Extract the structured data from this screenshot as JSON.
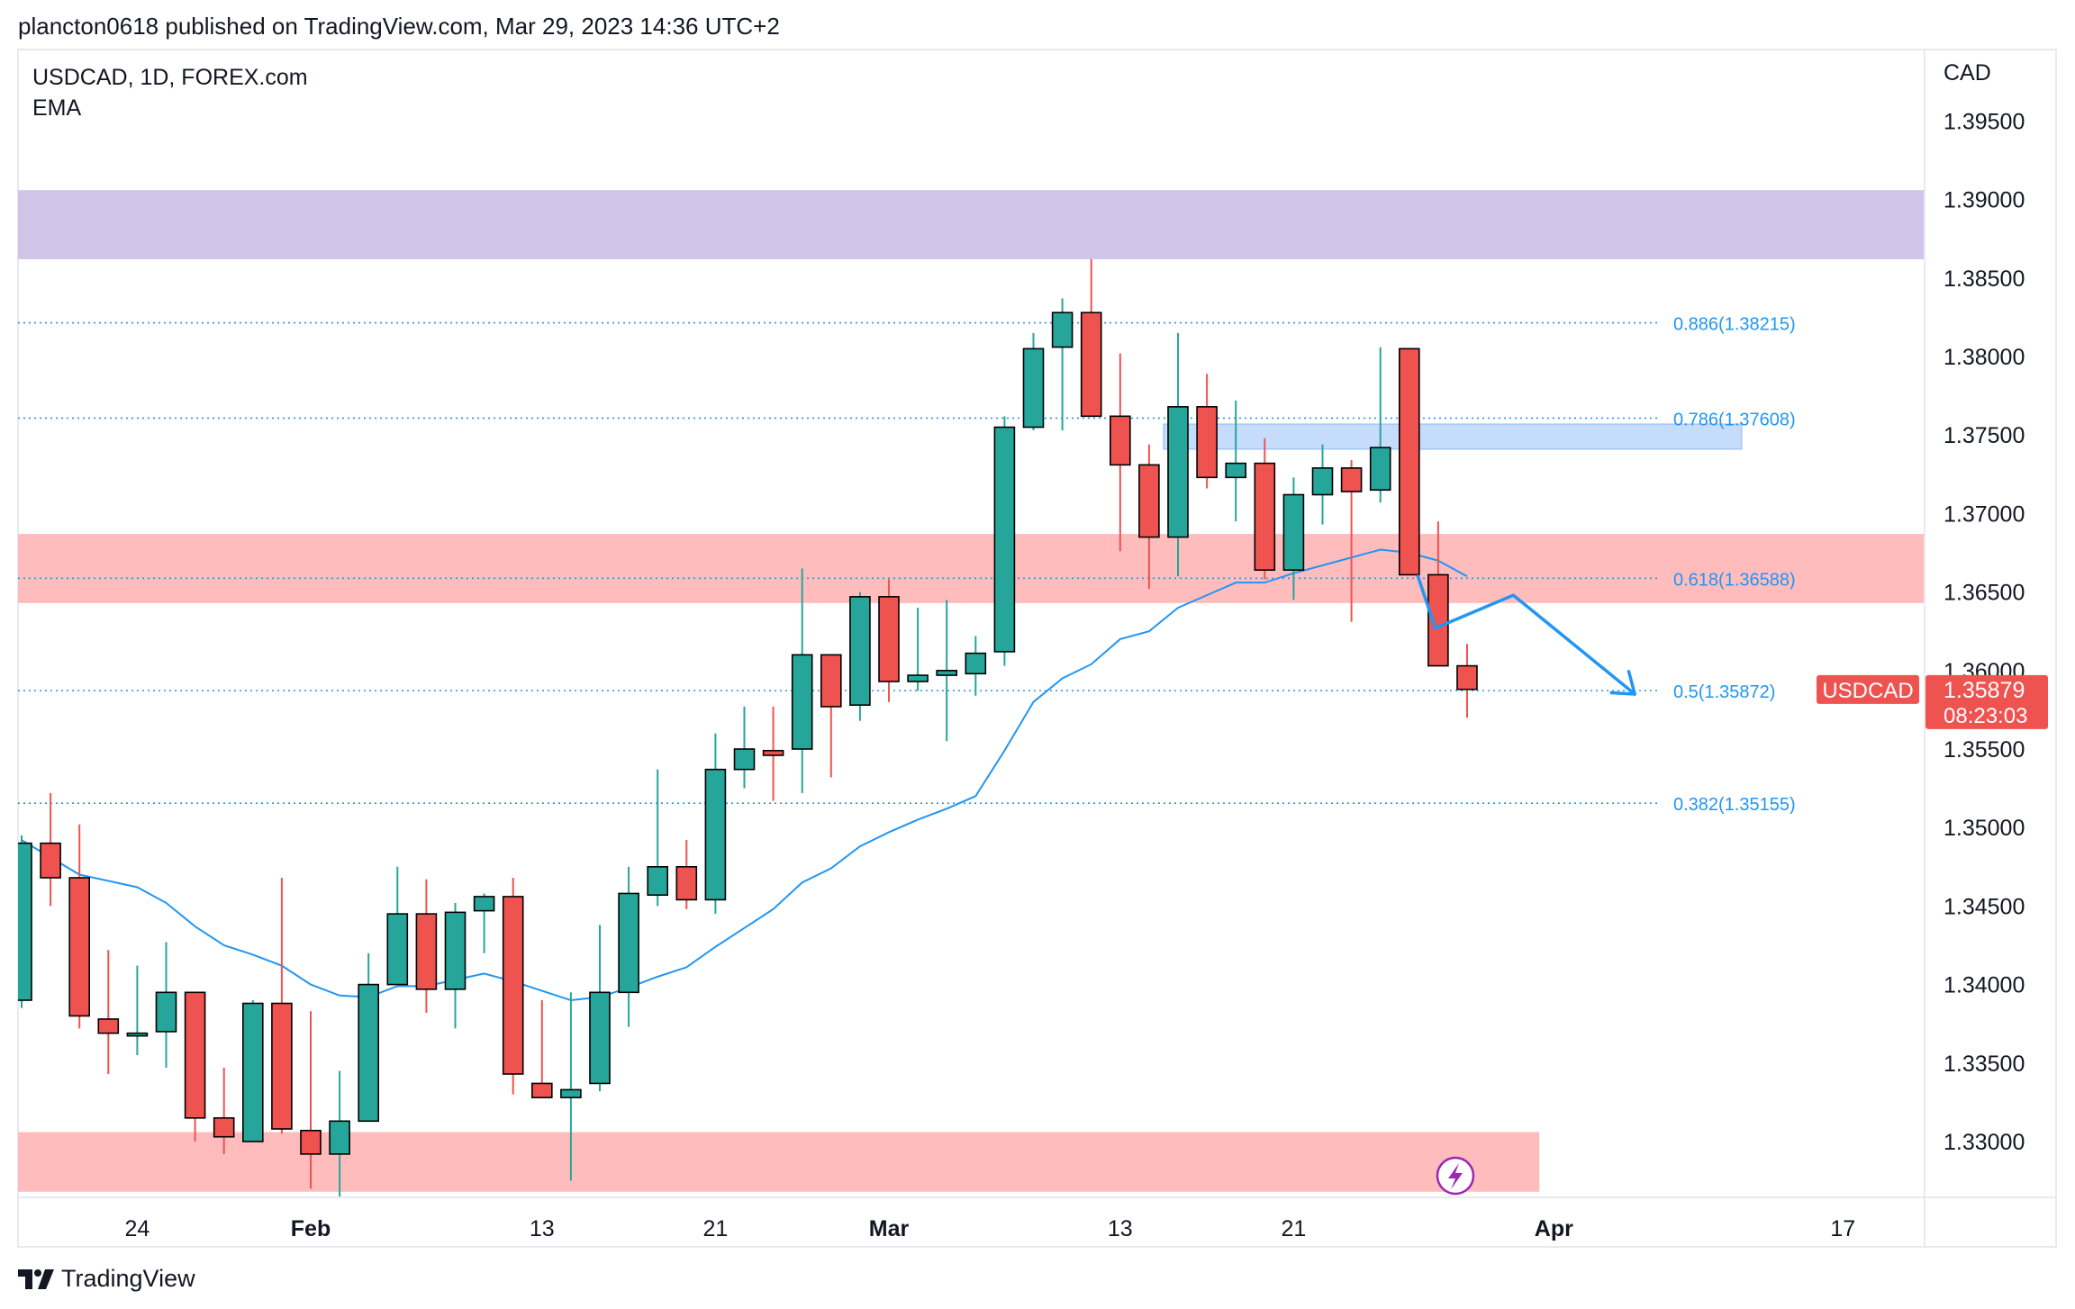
{
  "header": {
    "published_line": "plancton0618 published on TradingView.com, Mar 29, 2023 14:36 UTC+2"
  },
  "legend": {
    "symbol_line": "USDCAD, 1D, FOREX.com",
    "indicator": "EMA"
  },
  "footer": {
    "brand": "TradingView"
  },
  "colors": {
    "up": "#26a69a",
    "down": "#ef5350",
    "ema": "#2196f3",
    "fib": "#2196f3",
    "zone_purple": "#d1c4e9",
    "zone_red": "#ffbcbc",
    "zone_blue": "#c5dcfb",
    "arrow": "#2196f3",
    "price_badge": "#ef5350"
  },
  "chart_data": {
    "type": "candlestick",
    "symbol": "USDCAD",
    "timeframe": "1D",
    "exchange": "FOREX.com",
    "currency_label": "CAD",
    "ylim": [
      1.3265,
      1.3995
    ],
    "y_ticks": [
      "1.39500",
      "1.39000",
      "1.38500",
      "1.38000",
      "1.37500",
      "1.37000",
      "1.36500",
      "1.36000",
      "1.35500",
      "1.35000",
      "1.34500",
      "1.34000",
      "1.33500",
      "1.33000"
    ],
    "x_ticks": [
      {
        "label": "24",
        "day": 4
      },
      {
        "label": "Feb",
        "day": 10
      },
      {
        "label": "13",
        "day": 18
      },
      {
        "label": "21",
        "day": 24
      },
      {
        "label": "Mar",
        "day": 30
      },
      {
        "label": "13",
        "day": 38
      },
      {
        "label": "21",
        "day": 44
      },
      {
        "label": "Apr",
        "day": 53
      },
      {
        "label": "17",
        "day": 63
      }
    ],
    "candles": [
      {
        "day": 0,
        "o": 1.339,
        "h": 1.3495,
        "l": 1.3385,
        "c": 1.349
      },
      {
        "day": 1,
        "o": 1.349,
        "h": 1.3522,
        "l": 1.345,
        "c": 1.3468
      },
      {
        "day": 2,
        "o": 1.3468,
        "h": 1.3502,
        "l": 1.3372,
        "c": 1.338
      },
      {
        "day": 3,
        "o": 1.3378,
        "h": 1.3422,
        "l": 1.3343,
        "c": 1.3369
      },
      {
        "day": 4,
        "o": 1.3369,
        "h": 1.3412,
        "l": 1.3355,
        "c": 1.3369
      },
      {
        "day": 5,
        "o": 1.337,
        "h": 1.3427,
        "l": 1.3347,
        "c": 1.3395
      },
      {
        "day": 6,
        "o": 1.3395,
        "h": 1.3395,
        "l": 1.33,
        "c": 1.3315
      },
      {
        "day": 7,
        "o": 1.3315,
        "h": 1.3347,
        "l": 1.3292,
        "c": 1.3303
      },
      {
        "day": 8,
        "o": 1.33,
        "h": 1.339,
        "l": 1.33,
        "c": 1.3388
      },
      {
        "day": 9,
        "o": 1.3388,
        "h": 1.3468,
        "l": 1.3305,
        "c": 1.3308
      },
      {
        "day": 10,
        "o": 1.3307,
        "h": 1.3383,
        "l": 1.327,
        "c": 1.3292
      },
      {
        "day": 11,
        "o": 1.3292,
        "h": 1.3345,
        "l": 1.3263,
        "c": 1.3313
      },
      {
        "day": 12,
        "o": 1.3313,
        "h": 1.342,
        "l": 1.3313,
        "c": 1.34
      },
      {
        "day": 13,
        "o": 1.34,
        "h": 1.3475,
        "l": 1.34,
        "c": 1.3445
      },
      {
        "day": 14,
        "o": 1.3445,
        "h": 1.3467,
        "l": 1.3382,
        "c": 1.3397
      },
      {
        "day": 15,
        "o": 1.3397,
        "h": 1.3452,
        "l": 1.3372,
        "c": 1.3446
      },
      {
        "day": 16,
        "o": 1.3447,
        "h": 1.3458,
        "l": 1.342,
        "c": 1.3456
      },
      {
        "day": 17,
        "o": 1.3456,
        "h": 1.3468,
        "l": 1.333,
        "c": 1.3343
      },
      {
        "day": 18,
        "o": 1.3337,
        "h": 1.339,
        "l": 1.3328,
        "c": 1.3328
      },
      {
        "day": 19,
        "o": 1.3328,
        "h": 1.3395,
        "l": 1.3275,
        "c": 1.3333
      },
      {
        "day": 20,
        "o": 1.3337,
        "h": 1.3438,
        "l": 1.3332,
        "c": 1.3395
      },
      {
        "day": 21,
        "o": 1.3395,
        "h": 1.3475,
        "l": 1.3373,
        "c": 1.3458
      },
      {
        "day": 22,
        "o": 1.3457,
        "h": 1.3537,
        "l": 1.345,
        "c": 1.3475
      },
      {
        "day": 23,
        "o": 1.3475,
        "h": 1.3492,
        "l": 1.3448,
        "c": 1.3454
      },
      {
        "day": 24,
        "o": 1.3454,
        "h": 1.356,
        "l": 1.3445,
        "c": 1.3537
      },
      {
        "day": 25,
        "o": 1.3537,
        "h": 1.3577,
        "l": 1.3525,
        "c": 1.355
      },
      {
        "day": 26,
        "o": 1.3549,
        "h": 1.3577,
        "l": 1.3517,
        "c": 1.3546
      },
      {
        "day": 27,
        "o": 1.355,
        "h": 1.3665,
        "l": 1.3522,
        "c": 1.361
      },
      {
        "day": 28,
        "o": 1.361,
        "h": 1.3605,
        "l": 1.3532,
        "c": 1.3577
      },
      {
        "day": 29,
        "o": 1.3578,
        "h": 1.365,
        "l": 1.3568,
        "c": 1.3647
      },
      {
        "day": 30,
        "o": 1.3647,
        "h": 1.3658,
        "l": 1.358,
        "c": 1.3593
      },
      {
        "day": 31,
        "o": 1.3593,
        "h": 1.364,
        "l": 1.3587,
        "c": 1.3597
      },
      {
        "day": 32,
        "o": 1.3597,
        "h": 1.3645,
        "l": 1.3555,
        "c": 1.36
      },
      {
        "day": 33,
        "o": 1.3598,
        "h": 1.3622,
        "l": 1.3584,
        "c": 1.3611
      },
      {
        "day": 34,
        "o": 1.3612,
        "h": 1.3762,
        "l": 1.3603,
        "c": 1.3755
      },
      {
        "day": 35,
        "o": 1.3755,
        "h": 1.3815,
        "l": 1.3753,
        "c": 1.3805
      },
      {
        "day": 36,
        "o": 1.3806,
        "h": 1.3837,
        "l": 1.3753,
        "c": 1.3828
      },
      {
        "day": 37,
        "o": 1.3828,
        "h": 1.3862,
        "l": 1.3762,
        "c": 1.3762
      },
      {
        "day": 38,
        "o": 1.3762,
        "h": 1.3802,
        "l": 1.3676,
        "c": 1.3731
      },
      {
        "day": 39,
        "o": 1.3731,
        "h": 1.3744,
        "l": 1.3652,
        "c": 1.3685
      },
      {
        "day": 40,
        "o": 1.3685,
        "h": 1.3815,
        "l": 1.366,
        "c": 1.3768
      },
      {
        "day": 41,
        "o": 1.3768,
        "h": 1.3789,
        "l": 1.3716,
        "c": 1.3723
      },
      {
        "day": 42,
        "o": 1.3723,
        "h": 1.3772,
        "l": 1.3695,
        "c": 1.3732
      },
      {
        "day": 43,
        "o": 1.3732,
        "h": 1.3748,
        "l": 1.3658,
        "c": 1.3664
      },
      {
        "day": 44,
        "o": 1.3664,
        "h": 1.3723,
        "l": 1.3645,
        "c": 1.3712
      },
      {
        "day": 45,
        "o": 1.3712,
        "h": 1.3744,
        "l": 1.3693,
        "c": 1.3729
      },
      {
        "day": 46,
        "o": 1.3729,
        "h": 1.3734,
        "l": 1.3631,
        "c": 1.3714
      },
      {
        "day": 47,
        "o": 1.3715,
        "h": 1.3806,
        "l": 1.3707,
        "c": 1.3742
      },
      {
        "day": 48,
        "o": 1.3805,
        "h": 1.3805,
        "l": 1.3661,
        "c": 1.3661
      },
      {
        "day": 49,
        "o": 1.3661,
        "h": 1.3695,
        "l": 1.3603,
        "c": 1.3603
      },
      {
        "day": 50,
        "o": 1.3603,
        "h": 1.3617,
        "l": 1.357,
        "c": 1.3588
      }
    ],
    "ema_series": [
      {
        "day": 0,
        "v": 1.3492
      },
      {
        "day": 2,
        "v": 1.347
      },
      {
        "day": 4,
        "v": 1.3462
      },
      {
        "day": 5,
        "v": 1.3452
      },
      {
        "day": 6,
        "v": 1.3437
      },
      {
        "day": 7,
        "v": 1.3425
      },
      {
        "day": 8,
        "v": 1.3419
      },
      {
        "day": 9,
        "v": 1.3412
      },
      {
        "day": 10,
        "v": 1.34
      },
      {
        "day": 11,
        "v": 1.3393
      },
      {
        "day": 12,
        "v": 1.3392
      },
      {
        "day": 13,
        "v": 1.3399
      },
      {
        "day": 14,
        "v": 1.3399
      },
      {
        "day": 15,
        "v": 1.3403
      },
      {
        "day": 16,
        "v": 1.3407
      },
      {
        "day": 17,
        "v": 1.3402
      },
      {
        "day": 18,
        "v": 1.3396
      },
      {
        "day": 19,
        "v": 1.339
      },
      {
        "day": 20,
        "v": 1.3392
      },
      {
        "day": 21,
        "v": 1.3398
      },
      {
        "day": 22,
        "v": 1.3405
      },
      {
        "day": 23,
        "v": 1.3411
      },
      {
        "day": 24,
        "v": 1.3424
      },
      {
        "day": 25,
        "v": 1.3436
      },
      {
        "day": 26,
        "v": 1.3448
      },
      {
        "day": 27,
        "v": 1.3465
      },
      {
        "day": 28,
        "v": 1.3474
      },
      {
        "day": 29,
        "v": 1.3488
      },
      {
        "day": 30,
        "v": 1.3497
      },
      {
        "day": 31,
        "v": 1.3505
      },
      {
        "day": 32,
        "v": 1.3512
      },
      {
        "day": 33,
        "v": 1.352
      },
      {
        "day": 34,
        "v": 1.3549
      },
      {
        "day": 35,
        "v": 1.358
      },
      {
        "day": 36,
        "v": 1.3595
      },
      {
        "day": 37,
        "v": 1.3604
      },
      {
        "day": 38,
        "v": 1.362
      },
      {
        "day": 39,
        "v": 1.3625
      },
      {
        "day": 40,
        "v": 1.364
      },
      {
        "day": 41,
        "v": 1.3648
      },
      {
        "day": 42,
        "v": 1.3656
      },
      {
        "day": 43,
        "v": 1.3656
      },
      {
        "day": 44,
        "v": 1.3662
      },
      {
        "day": 45,
        "v": 1.3667
      },
      {
        "day": 46,
        "v": 1.3672
      },
      {
        "day": 47,
        "v": 1.3677
      },
      {
        "day": 48,
        "v": 1.3675
      },
      {
        "day": 49,
        "v": 1.367
      },
      {
        "day": 50,
        "v": 1.366
      }
    ],
    "fib_levels": [
      {
        "label": "0.886(1.38215)",
        "value": 1.38215
      },
      {
        "label": "0.786(1.37608)",
        "value": 1.37608
      },
      {
        "label": "0.618(1.36588)",
        "value": 1.36588
      },
      {
        "label": "0.5(1.35872)",
        "value": 1.35872
      },
      {
        "label": "0.382(1.35155)",
        "value": 1.35155
      }
    ],
    "zones": [
      {
        "name": "supply-zone-top",
        "color": "#d1c4e9",
        "from_day": -1,
        "to_day": 66.5,
        "y_low": 1.3862,
        "y_high": 1.3906
      },
      {
        "name": "resistance-zone",
        "color": "#ffbcbc",
        "from_day": -1,
        "to_day": 66.5,
        "y_low": 1.3643,
        "y_high": 1.3687
      },
      {
        "name": "support-zone-bottom",
        "color": "#ffbcbc",
        "from_day": -1,
        "to_day": 52.5,
        "y_low": 1.3268,
        "y_high": 1.3306
      },
      {
        "name": "blue-box",
        "color": "#c5dcfb",
        "from_day": 39.5,
        "to_day": 59.5,
        "y_low": 1.3741,
        "y_high": 1.3757
      }
    ],
    "forecast_arrow": [
      {
        "day": 48.3,
        "v": 1.366
      },
      {
        "day": 48.9,
        "v": 1.3627
      },
      {
        "day": 51.6,
        "v": 1.3648
      },
      {
        "day": 55.8,
        "v": 1.3585
      }
    ],
    "last_price": {
      "symbol_tag": "USDCAD",
      "price": "1.35879",
      "countdown": "08:23:03",
      "value": 1.35879
    }
  }
}
